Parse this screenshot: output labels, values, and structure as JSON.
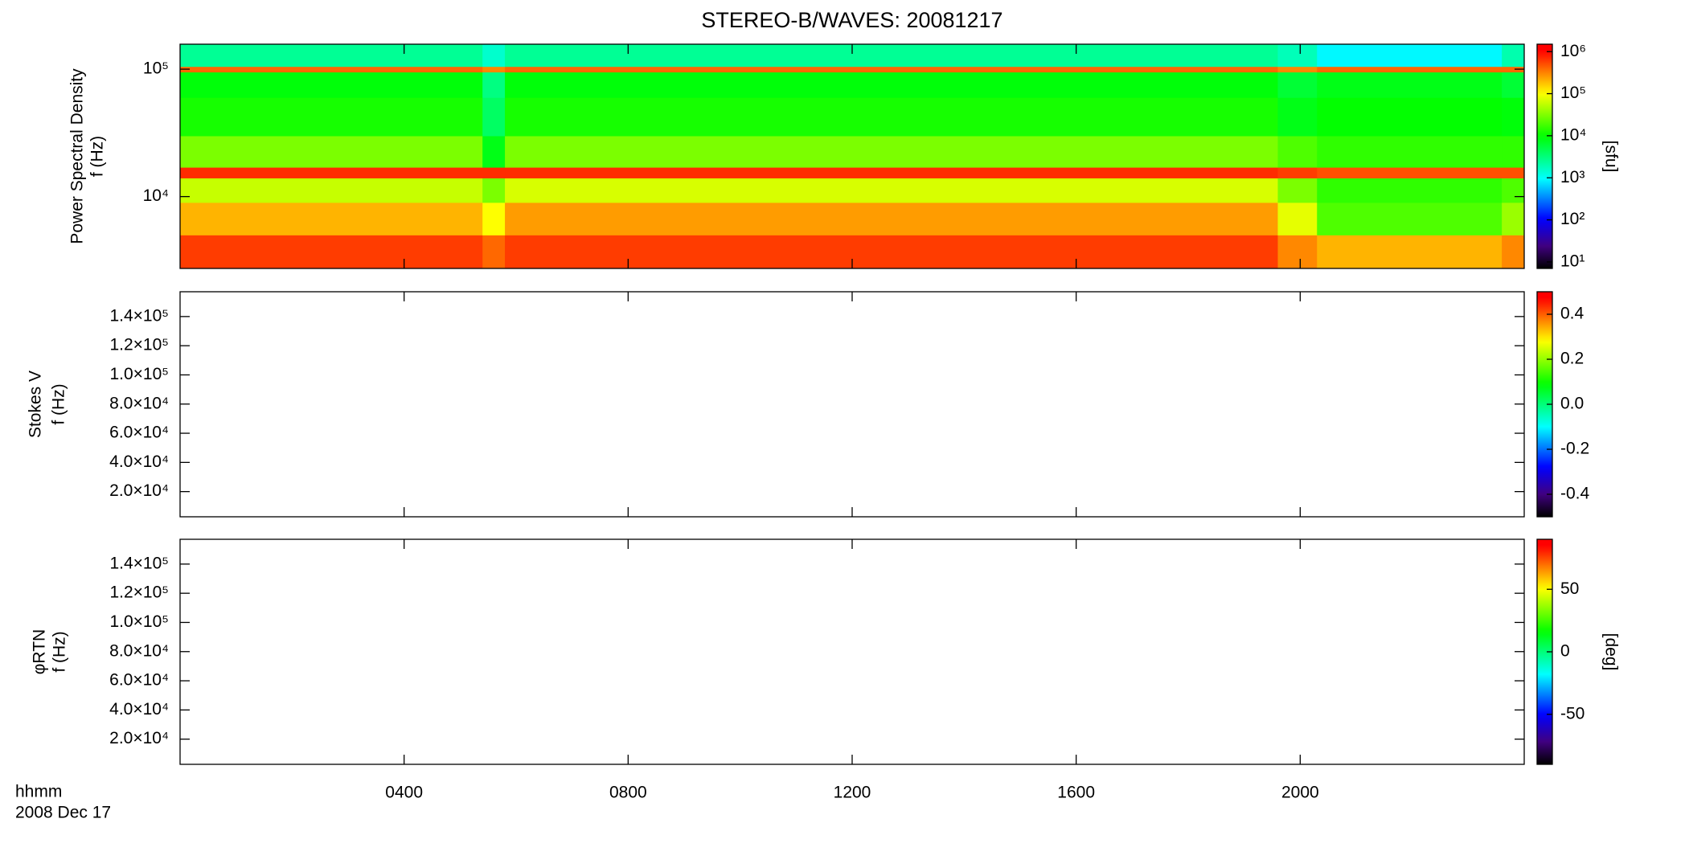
{
  "chart_data": [
    {
      "type": "heatmap",
      "title": "STEREO-B/WAVES: 20081217",
      "ylabel": [
        "Power Spectral Density",
        "f (Hz)"
      ],
      "yscale": "log",
      "xlim": [
        0,
        24
      ],
      "xticks": [
        4,
        8,
        12,
        16,
        20
      ],
      "ylim": [
        2730,
        157000
      ],
      "yticks": [
        {
          "value": 10000,
          "label": "10⁴"
        },
        {
          "value": 100000,
          "label": "10⁵"
        }
      ],
      "time_bins": [
        0,
        5.4,
        5.8,
        19.6,
        20.3,
        23.6,
        24
      ],
      "freq_bins": [
        2730,
        5000,
        9000,
        14000,
        17000,
        30000,
        60000,
        95000,
        105000,
        157000
      ],
      "z": [
        [
          600000,
          400000,
          600000,
          300000,
          200000,
          300000
        ],
        [
          200000,
          100000,
          250000,
          80000,
          20000,
          40000
        ],
        [
          60000,
          30000,
          70000,
          30000,
          15000,
          20000
        ],
        [
          700000,
          700000,
          700000,
          600000,
          500000,
          500000
        ],
        [
          30000,
          8000,
          30000,
          20000,
          15000,
          15000
        ],
        [
          12000,
          4000,
          12000,
          8000,
          10000,
          9000
        ],
        [
          9000,
          3000,
          9000,
          6000,
          8000,
          6000
        ],
        [
          400000,
          300000,
          400000,
          300000,
          400000,
          400000
        ],
        [
          2500,
          1500,
          2500,
          1800,
          900,
          2000
        ]
      ],
      "cscale": "log",
      "clim": [
        7,
        1500000
      ],
      "cticks": [
        {
          "value": 10,
          "label": "10¹"
        },
        {
          "value": 100,
          "label": "10²"
        },
        {
          "value": 1000,
          "label": "10³"
        },
        {
          "value": 10000,
          "label": "10⁴"
        },
        {
          "value": 100000,
          "label": "10⁵"
        },
        {
          "value": 1000000,
          "label": "10⁶"
        }
      ],
      "clabel": "[sfu]"
    },
    {
      "type": "heatmap",
      "ylabel": [
        "Stokes V",
        "f (Hz)"
      ],
      "yscale": "linear",
      "xlim": [
        0,
        24
      ],
      "xticks": [
        4,
        8,
        12,
        16,
        20
      ],
      "ylim": [
        2730,
        157000
      ],
      "yticks": [
        {
          "value": 20000,
          "label": "2.0×10⁴"
        },
        {
          "value": 40000,
          "label": "4.0×10⁴"
        },
        {
          "value": 60000,
          "label": "6.0×10⁴"
        },
        {
          "value": 80000,
          "label": "8.0×10⁴"
        },
        {
          "value": 100000,
          "label": "1.0×10⁵"
        },
        {
          "value": 120000,
          "label": "1.2×10⁵"
        },
        {
          "value": 140000,
          "label": "1.4×10⁵"
        }
      ],
      "cscale": "linear",
      "clim": [
        -0.5,
        0.5
      ],
      "cticks": [
        -0.4,
        -0.2,
        {
          "value": 0,
          "label": "0.0"
        },
        0.2,
        0.4
      ]
    },
    {
      "type": "heatmap",
      "ylabel": [
        "φRTN",
        "f (Hz)"
      ],
      "yscale": "linear",
      "xlim": [
        0,
        24
      ],
      "xticks": [
        {
          "value": 4,
          "label": "0400"
        },
        {
          "value": 8,
          "label": "0800"
        },
        {
          "value": 12,
          "label": "1200"
        },
        {
          "value": 16,
          "label": "1600"
        },
        {
          "value": 20,
          "label": "2000"
        }
      ],
      "xlabel": [
        "hhmm",
        "2008 Dec 17"
      ],
      "ylim": [
        2730,
        157000
      ],
      "yticks": [
        {
          "value": 20000,
          "label": "2.0×10⁴"
        },
        {
          "value": 40000,
          "label": "4.0×10⁴"
        },
        {
          "value": 60000,
          "label": "6.0×10⁴"
        },
        {
          "value": 80000,
          "label": "8.0×10⁴"
        },
        {
          "value": 100000,
          "label": "1.0×10⁵"
        },
        {
          "value": 120000,
          "label": "1.2×10⁵"
        },
        {
          "value": 140000,
          "label": "1.4×10⁵"
        }
      ],
      "cscale": "linear",
      "clim": [
        -90,
        90
      ],
      "cticks": [
        -50,
        0,
        50
      ],
      "clabel": "[deg]"
    }
  ]
}
